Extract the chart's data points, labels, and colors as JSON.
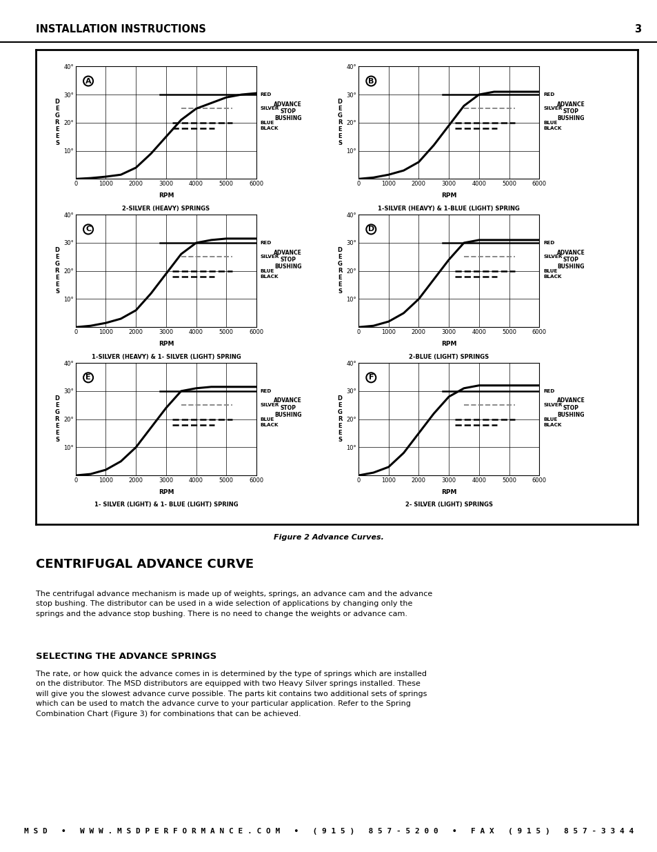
{
  "page_title": "INSTALLATION INSTRUCTIONS",
  "page_number": "3",
  "figure_caption": "Figure 2 Advance Curves.",
  "section_title": "CENTRIFUGAL ADVANCE CURVE",
  "body_text": "The centrifugal advance mechanism is made up of weights, springs, an advance cam and the advance\nstop bushing. The distributor can be used in a wide selection of applications by changing only the\nsprings and the advance stop bushing. There is no need to change the weights or advance cam.",
  "subsection_title": "SELECTING THE ADVANCE SPRINGS",
  "subsection_text": "The rate, or how quick the advance comes in is determined by the type of springs which are installed\non the distributor. The MSD distributors are equipped with two Heavy Silver springs installed. These\nwill give you the slowest advance curve possible. The parts kit contains two additional sets of springs\nwhich can be used to match the advance curve to your particular application. Refer to the Spring\nCombination Chart (Figure 3) for combinations that can be achieved.",
  "footer_text": "M S D   •   W W W . M S D P E R F O R M A N C E . C O M   •   ( 9 1 5 )   8 5 7 - 5 2 0 0   •   F A X   ( 9 1 5 )   8 5 7 - 3 3 4 4",
  "charts": [
    {
      "label": "A",
      "subtitle": "2-SILVER (HEAVY) SPRINGS",
      "curve_rpm": [
        0,
        500,
        1000,
        1500,
        2000,
        2500,
        3000,
        3500,
        4000,
        4500,
        5000,
        5500,
        6000
      ],
      "curve_deg": [
        0,
        0.3,
        0.8,
        1.5,
        4,
        9,
        15,
        21,
        25,
        27,
        29,
        30,
        30.5
      ],
      "hlines": [
        {
          "label": "RED",
          "y": 30
        },
        {
          "label": "SILVER",
          "y": 25
        },
        {
          "label": "BLUE",
          "y": 20
        },
        {
          "label": "BLACK",
          "y": 18
        }
      ]
    },
    {
      "label": "B",
      "subtitle": "1-SILVER (HEAVY) & 1-BLUE (LIGHT) SPRING",
      "curve_rpm": [
        0,
        500,
        1000,
        1500,
        2000,
        2500,
        3000,
        3500,
        4000,
        4500,
        5000,
        5500,
        6000
      ],
      "curve_deg": [
        0,
        0.5,
        1.5,
        3,
        6,
        12,
        19,
        26,
        30,
        31,
        31,
        31,
        31
      ],
      "hlines": [
        {
          "label": "RED",
          "y": 30
        },
        {
          "label": "SILVER",
          "y": 25
        },
        {
          "label": "BLUE",
          "y": 20
        },
        {
          "label": "BLACK",
          "y": 18
        }
      ]
    },
    {
      "label": "C",
      "subtitle": "1-SILVER (HEAVY) & 1- SILVER (LIGHT) SPRING",
      "curve_rpm": [
        0,
        500,
        1000,
        1500,
        2000,
        2500,
        3000,
        3500,
        4000,
        4500,
        5000,
        5500,
        6000
      ],
      "curve_deg": [
        0,
        0.5,
        1.5,
        3,
        6,
        12,
        19,
        26,
        30,
        31,
        31.5,
        31.5,
        31.5
      ],
      "hlines": [
        {
          "label": "RED",
          "y": 30
        },
        {
          "label": "SILVER",
          "y": 25
        },
        {
          "label": "BLUE",
          "y": 20
        },
        {
          "label": "BLACK",
          "y": 18
        }
      ]
    },
    {
      "label": "D",
      "subtitle": "2-BLUE (LIGHT) SPRINGS",
      "curve_rpm": [
        0,
        500,
        1000,
        1500,
        2000,
        2500,
        3000,
        3500,
        4000,
        4500,
        5000,
        5500,
        6000
      ],
      "curve_deg": [
        0,
        0.5,
        2,
        5,
        10,
        17,
        24,
        30,
        31,
        31,
        31,
        31,
        31
      ],
      "hlines": [
        {
          "label": "RED",
          "y": 30
        },
        {
          "label": "SILVER",
          "y": 25
        },
        {
          "label": "BLUE",
          "y": 20
        },
        {
          "label": "BLACK",
          "y": 18
        }
      ]
    },
    {
      "label": "E",
      "subtitle": "1- SILVER (LIGHT) & 1- BLUE (LIGHT) SPRING",
      "curve_rpm": [
        0,
        500,
        1000,
        1500,
        2000,
        2500,
        3000,
        3500,
        4000,
        4500,
        5000,
        5500,
        6000
      ],
      "curve_deg": [
        0,
        0.5,
        2,
        5,
        10,
        17,
        24,
        30,
        31,
        31.5,
        31.5,
        31.5,
        31.5
      ],
      "hlines": [
        {
          "label": "RED",
          "y": 30
        },
        {
          "label": "SILVER",
          "y": 25
        },
        {
          "label": "BLUE",
          "y": 20
        },
        {
          "label": "BLACK",
          "y": 18
        }
      ]
    },
    {
      "label": "F",
      "subtitle": "2- SILVER (LIGHT) SPRINGS",
      "curve_rpm": [
        0,
        500,
        1000,
        1500,
        2000,
        2500,
        3000,
        3500,
        4000,
        4500,
        5000,
        5500,
        6000
      ],
      "curve_deg": [
        0,
        1,
        3,
        8,
        15,
        22,
        28,
        31,
        32,
        32,
        32,
        32,
        32
      ],
      "hlines": [
        {
          "label": "RED",
          "y": 30
        },
        {
          "label": "SILVER",
          "y": 25
        },
        {
          "label": "BLUE",
          "y": 20
        },
        {
          "label": "BLACK",
          "y": 18
        }
      ]
    }
  ],
  "xmin": 0,
  "xmax": 6000,
  "ymin": 0,
  "ymax": 40,
  "yticks": [
    0,
    10,
    20,
    30,
    40
  ],
  "xticks": [
    0,
    1000,
    2000,
    3000,
    4000,
    5000,
    6000
  ],
  "bg_color": "#ffffff",
  "curve_color": "#000000",
  "hline_x_start": 3200,
  "hline_colors": {
    "RED": "#000000",
    "SILVER": "#777777",
    "BLUE": "#000000",
    "BLACK": "#000000"
  }
}
